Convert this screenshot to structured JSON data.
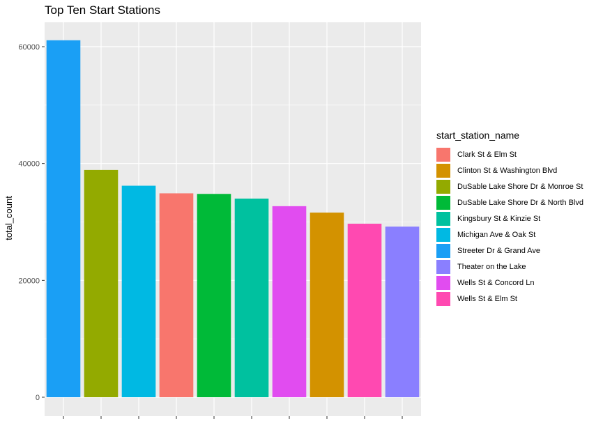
{
  "chart_data": {
    "type": "bar",
    "title": "Top Ten Start Stations",
    "xlabel": "",
    "ylabel": "total_count",
    "ylim": [
      0,
      64000
    ],
    "yticks": [
      0,
      20000,
      40000,
      60000
    ],
    "grid": true,
    "legend_title": "start_station_name",
    "legend_position": "right",
    "legend": [
      {
        "name": "Clark St & Elm St",
        "color": "#F8766D"
      },
      {
        "name": "Clinton St & Washington Blvd",
        "color": "#D39200"
      },
      {
        "name": "DuSable Lake Shore Dr & Monroe St",
        "color": "#93AA00"
      },
      {
        "name": "DuSable Lake Shore Dr & North Blvd",
        "color": "#00BA38"
      },
      {
        "name": "Kingsbury St & Kinzie St",
        "color": "#00C19F"
      },
      {
        "name": "Michigan Ave & Oak St",
        "color": "#00B9E3"
      },
      {
        "name": "Streeter Dr & Grand Ave",
        "color": "#1A9FF5"
      },
      {
        "name": "Theater on the Lake",
        "color": "#8A7FFF"
      },
      {
        "name": "Wells St & Concord Ln",
        "color": "#E14CF0"
      },
      {
        "name": "Wells St & Elm St",
        "color": "#FF49B1"
      }
    ],
    "bars": [
      {
        "station": "Streeter Dr & Grand Ave",
        "value": 61100
      },
      {
        "station": "DuSable Lake Shore Dr & Monroe St",
        "value": 38900
      },
      {
        "station": "Michigan Ave & Oak St",
        "value": 36200
      },
      {
        "station": "Clark St & Elm St",
        "value": 34900
      },
      {
        "station": "DuSable Lake Shore Dr & North Blvd",
        "value": 34800
      },
      {
        "station": "Kingsbury St & Kinzie St",
        "value": 34000
      },
      {
        "station": "Wells St & Concord Ln",
        "value": 32700
      },
      {
        "station": "Clinton St & Washington Blvd",
        "value": 31600
      },
      {
        "station": "Wells St & Elm St",
        "value": 29700
      },
      {
        "station": "Theater on the Lake",
        "value": 29200
      }
    ]
  }
}
